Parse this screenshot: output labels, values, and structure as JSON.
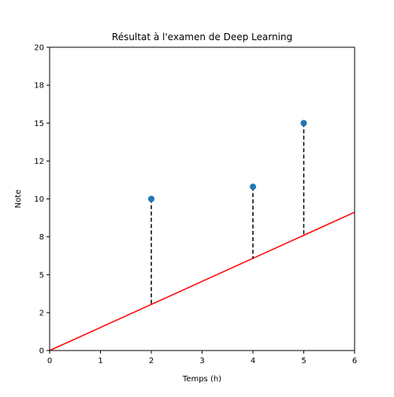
{
  "chart_data": {
    "type": "scatter",
    "title": "Résultat à l'examen de Deep Learning",
    "xlabel": "Temps (h)",
    "ylabel": "Note",
    "xlim": [
      0,
      6
    ],
    "ylim": [
      0,
      20
    ],
    "xticks": [
      0,
      1,
      2,
      3,
      4,
      5,
      6
    ],
    "xtick_labels": [
      "0",
      "1",
      "2",
      "3",
      "4",
      "5",
      "6"
    ],
    "yticks": [
      0,
      2.5,
      5,
      7.5,
      10,
      12.5,
      15,
      17.5,
      20
    ],
    "ytick_labels": [
      "0",
      "2",
      "5",
      "8",
      "10",
      "12",
      "15",
      "18",
      "20"
    ],
    "grid": false,
    "points": {
      "x": [
        2,
        4,
        5
      ],
      "y": [
        10,
        10.8,
        15
      ],
      "color": "#1f77b4"
    },
    "regression_line": {
      "slope": 1.52,
      "intercept": 0,
      "color": "#ff0000"
    },
    "residuals": {
      "style": "dashed",
      "color": "#000000"
    }
  }
}
